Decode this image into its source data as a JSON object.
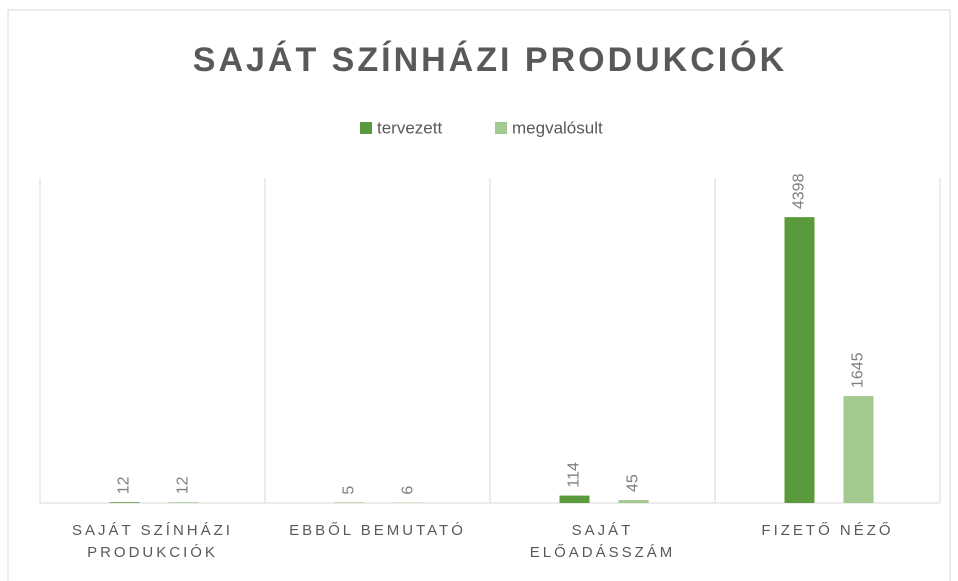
{
  "chart_data": {
    "type": "bar",
    "title": "SAJÁT SZÍNHÁZI PRODUKCIÓK",
    "categories": [
      "SAJÁT SZÍNHÁZI PRODUKCIÓK",
      "EBBŐL BEMUTATÓ",
      "SAJÁT ELŐADÁSSZÁM",
      "FIZETŐ NÉZŐ"
    ],
    "series": [
      {
        "name": "tervezett",
        "color": "#5b9a3c",
        "values": [
          12,
          5,
          114,
          4398
        ]
      },
      {
        "name": "megvalósult",
        "color": "#a3c98e",
        "values": [
          12,
          6,
          45,
          1645
        ]
      }
    ],
    "ylim": [
      0,
      5000
    ],
    "legend": "top"
  }
}
